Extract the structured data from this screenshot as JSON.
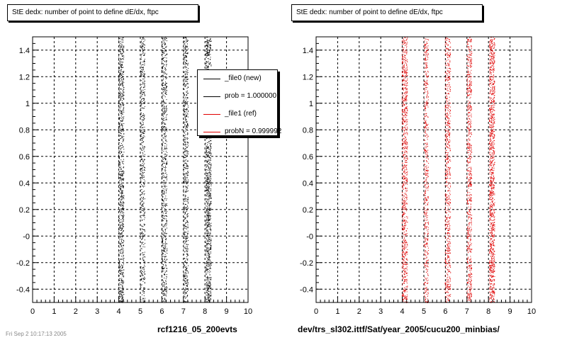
{
  "panels": [
    {
      "title": "StE dedx: number of point to define dE/dx, ftpc",
      "footer": "rcf1216_05_200evts",
      "color": "#000000"
    },
    {
      "title": "StE dedx: number of point to define dE/dx, ftpc",
      "footer": "dev/trs_sl302.ittf/Sat/year_2005/cucu200_minbias/",
      "color": "#e00000"
    }
  ],
  "legend": {
    "items": [
      {
        "label": "_file0 (new)",
        "color": "#000000"
      },
      {
        "label": "prob = 1.000000",
        "color": "#000000"
      },
      {
        "label": "_file1 (ref)",
        "color": "#e00000"
      },
      {
        "label": "probN = 0.999992",
        "color": "#e00000"
      }
    ]
  },
  "stamp": "Fri Sep 2 10:17:13 2005",
  "chart_data": [
    {
      "type": "scatter",
      "title": "StE dedx: number of point to define dE/dx, ftpc",
      "xlabel": "",
      "ylabel": "",
      "xlim": [
        0,
        10
      ],
      "ylim": [
        -0.5,
        1.5
      ],
      "x_ticks": [
        0,
        1,
        2,
        3,
        4,
        5,
        6,
        7,
        8,
        9,
        10
      ],
      "y_tick_labels": [
        "-0.4",
        "-0.2",
        "-0",
        "0.2",
        "0.4",
        "0.6",
        "0.8",
        "1",
        "1.2",
        "1.4"
      ],
      "y_tick_values": [
        -0.4,
        -0.2,
        0,
        0.2,
        0.4,
        0.6,
        0.8,
        1,
        1.2,
        1.4
      ],
      "grid": true,
      "series": [
        {
          "name": "_file0 (new)",
          "color": "#000000",
          "bands": [
            {
              "x": 4.1,
              "width": 0.25,
              "density": 1.0
            },
            {
              "x": 5.1,
              "width": 0.2,
              "density": 0.6
            },
            {
              "x": 6.1,
              "width": 0.25,
              "density": 0.8
            },
            {
              "x": 7.1,
              "width": 0.22,
              "density": 0.8
            },
            {
              "x": 8.15,
              "width": 0.25,
              "density": 1.3
            }
          ]
        }
      ]
    },
    {
      "type": "scatter",
      "title": "StE dedx: number of point to define dE/dx, ftpc",
      "xlabel": "",
      "ylabel": "",
      "xlim": [
        0,
        10
      ],
      "ylim": [
        -0.5,
        1.5
      ],
      "x_ticks": [
        0,
        1,
        2,
        3,
        4,
        5,
        6,
        7,
        8,
        9,
        10
      ],
      "y_tick_labels": [
        "-0.4",
        "-0.2",
        "-0",
        "0.2",
        "0.4",
        "0.6",
        "0.8",
        "1",
        "1.2",
        "1.4"
      ],
      "y_tick_values": [
        -0.4,
        -0.2,
        0,
        0.2,
        0.4,
        0.6,
        0.8,
        1,
        1.2,
        1.4
      ],
      "grid": true,
      "series": [
        {
          "name": "_file1 (ref)",
          "color": "#e00000",
          "bands": [
            {
              "x": 4.1,
              "width": 0.25,
              "density": 1.0
            },
            {
              "x": 5.1,
              "width": 0.2,
              "density": 0.6
            },
            {
              "x": 6.1,
              "width": 0.25,
              "density": 0.8
            },
            {
              "x": 7.1,
              "width": 0.22,
              "density": 0.8
            },
            {
              "x": 8.15,
              "width": 0.25,
              "density": 1.3
            }
          ]
        }
      ]
    }
  ]
}
